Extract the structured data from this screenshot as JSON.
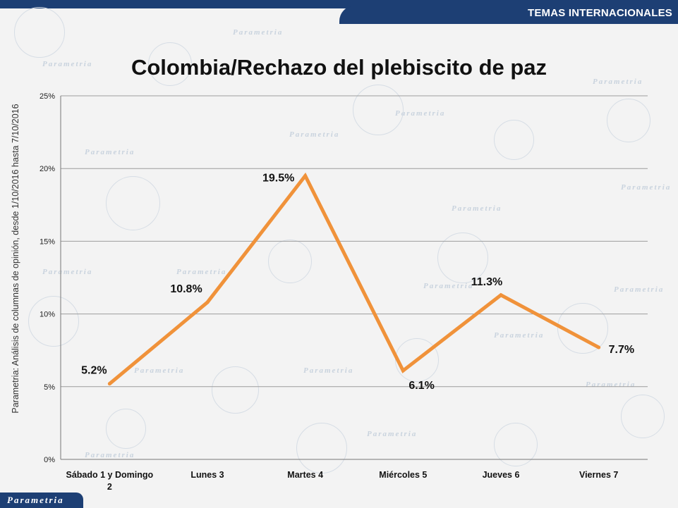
{
  "header": {
    "section_label": "TEMAS INTERNACIONALES"
  },
  "footer": {
    "brand": "Parametria"
  },
  "watermark": {
    "text": "Parametria"
  },
  "colors": {
    "line": "#f0923a",
    "bar": "#1d3f74",
    "grid": "#9c9c9c"
  },
  "chart_data": {
    "type": "line",
    "title": "Colombia/Rechazo del plebiscito de paz",
    "ylabel": "Parametria: Análisis de columnas de opinión, desde 1/10/2016 hasta  7/10/2016",
    "xlabel": "",
    "categories": [
      "Sábado 1 y Domingo 2",
      "Lunes 3",
      "Martes 4",
      "Miércoles 5",
      "Jueves 6",
      "Viernes 7"
    ],
    "values": [
      5.2,
      10.8,
      19.5,
      6.1,
      11.3,
      7.7
    ],
    "data_labels": [
      "5.2%",
      "10.8%",
      "19.5%",
      "6.1%",
      "11.3%",
      "7.7%"
    ],
    "ylim": [
      0,
      25
    ],
    "yticks": [
      0,
      5,
      10,
      15,
      20,
      25
    ],
    "ytick_labels": [
      "0%",
      "5%",
      "10%",
      "15%",
      "20%",
      "25%"
    ],
    "grid": true,
    "legend": "none"
  }
}
